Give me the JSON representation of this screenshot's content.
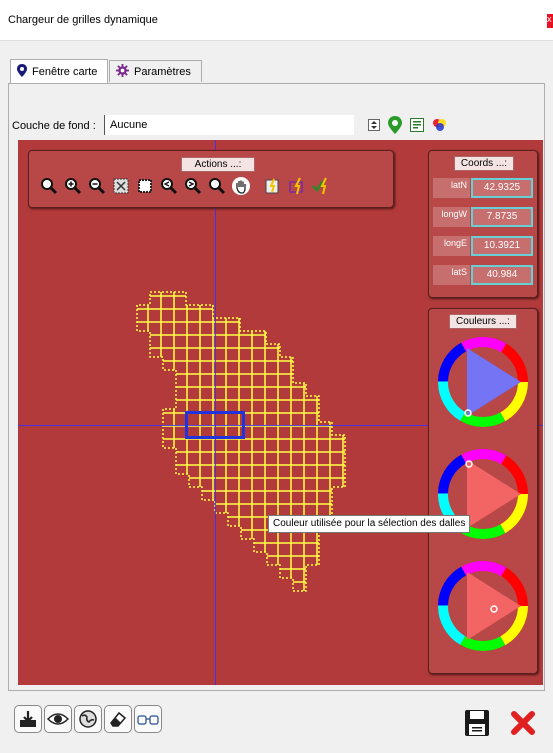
{
  "window": {
    "title": "Chargeur de grilles dynamique",
    "close_glyph": "x"
  },
  "tabs": [
    {
      "label": "Fenêtre carte",
      "icon": "map-pin-icon",
      "active": true
    },
    {
      "label": "Paramètres",
      "icon": "gear-icon",
      "active": false
    }
  ],
  "fond": {
    "label": "Couche de fond :",
    "value": "Aucune"
  },
  "actions": {
    "title": "Actions ...:"
  },
  "coords": {
    "title": "Coords ...:",
    "rows": [
      {
        "label": "latN",
        "value": "42.9325"
      },
      {
        "label": "longW",
        "value": "7.8735"
      },
      {
        "label": "longE",
        "value": "10.3921"
      },
      {
        "label": "latS",
        "value": "40.984"
      }
    ]
  },
  "couleurs": {
    "title": "Couleurs ...:"
  },
  "tooltip": "Couleur utilisée pour la sélection des dalles",
  "colors": {
    "map_bg": "#b23a3a",
    "grid": "#ffff44",
    "selection": "#2233dd",
    "crosshair": "#3333ff",
    "coord_border": "#66d0d6"
  }
}
